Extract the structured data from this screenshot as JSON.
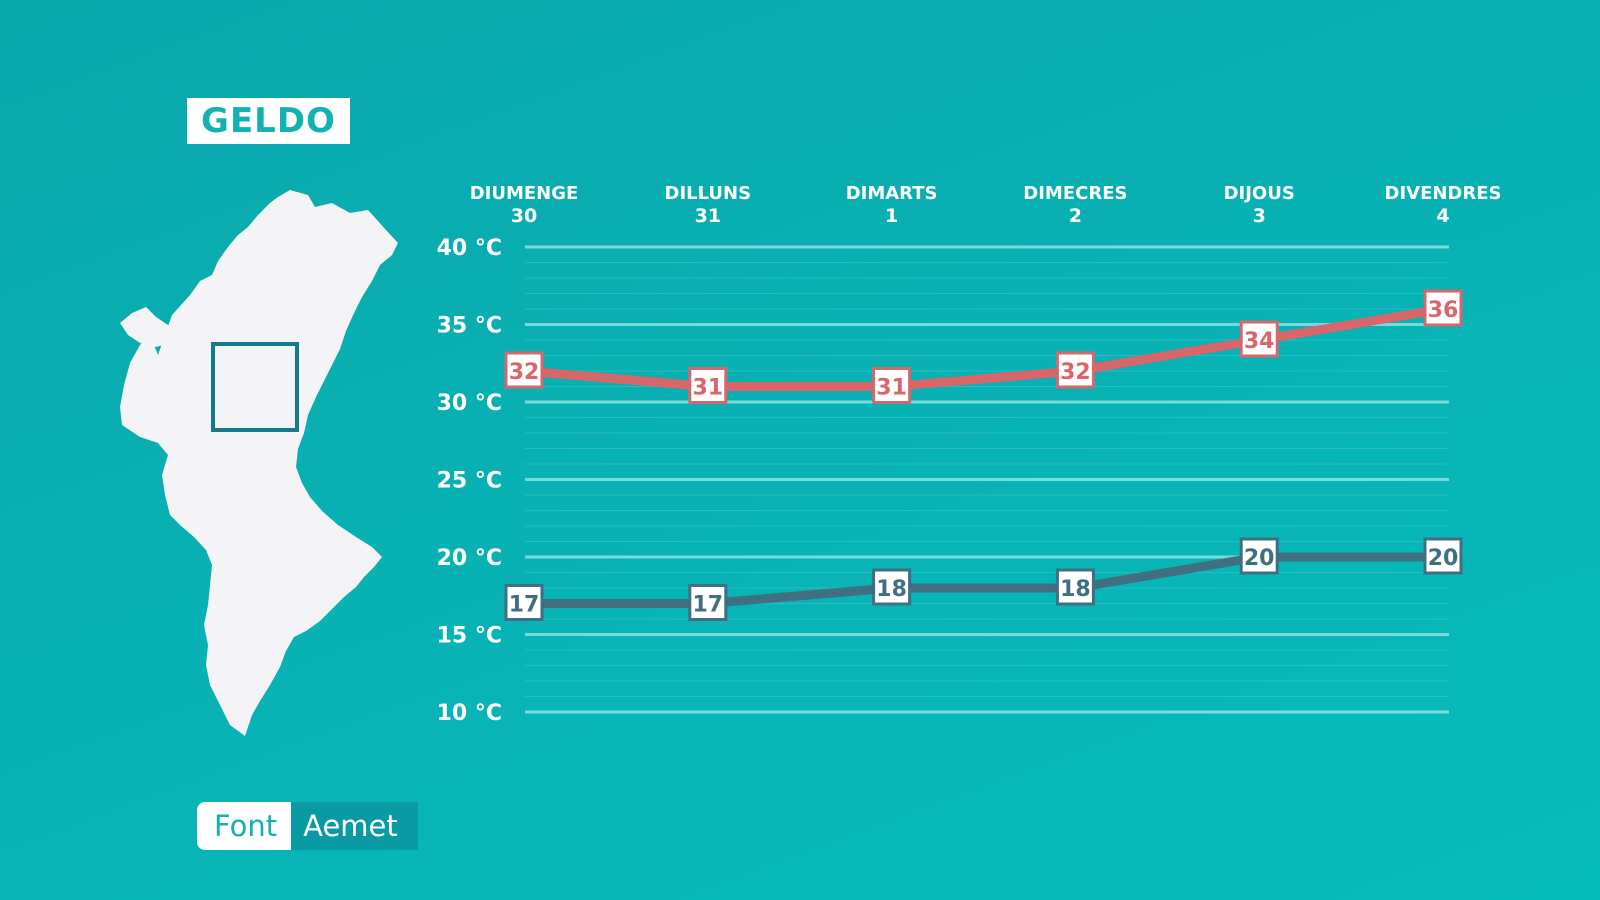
{
  "location": "GELDO",
  "source": {
    "label": "Font",
    "value": "Aemet"
  },
  "colors": {
    "background": "#09b0b2",
    "max_series": "#d9666a",
    "min_series": "#3f6f80",
    "map": "#f4f4f6",
    "grid": "#7fdcdc"
  },
  "icons": {
    "map": "valencian-community-map-icon"
  },
  "chart_data": {
    "type": "line",
    "categories": [
      {
        "day": "DIUMENGE",
        "date": "30"
      },
      {
        "day": "DILLUNS",
        "date": "31"
      },
      {
        "day": "DIMARTS",
        "date": "1"
      },
      {
        "day": "DIMECRES",
        "date": "2"
      },
      {
        "day": "DIJOUS",
        "date": "3"
      },
      {
        "day": "DIVENDRES",
        "date": "4"
      }
    ],
    "series": [
      {
        "key": "max",
        "values": [
          32,
          31,
          31,
          32,
          34,
          36
        ]
      },
      {
        "key": "min",
        "values": [
          17,
          17,
          18,
          18,
          20,
          20
        ]
      }
    ],
    "yticks": [
      {
        "value": 40,
        "label": "40 °C"
      },
      {
        "value": 35,
        "label": "35 °C"
      },
      {
        "value": 30,
        "label": "30 °C"
      },
      {
        "value": 25,
        "label": "25 °C"
      },
      {
        "value": 20,
        "label": "20 °C"
      },
      {
        "value": 15,
        "label": "15 °C"
      },
      {
        "value": 10,
        "label": "10 °C"
      }
    ],
    "ylim": [
      10,
      40
    ],
    "grid": true,
    "legend": "none"
  }
}
